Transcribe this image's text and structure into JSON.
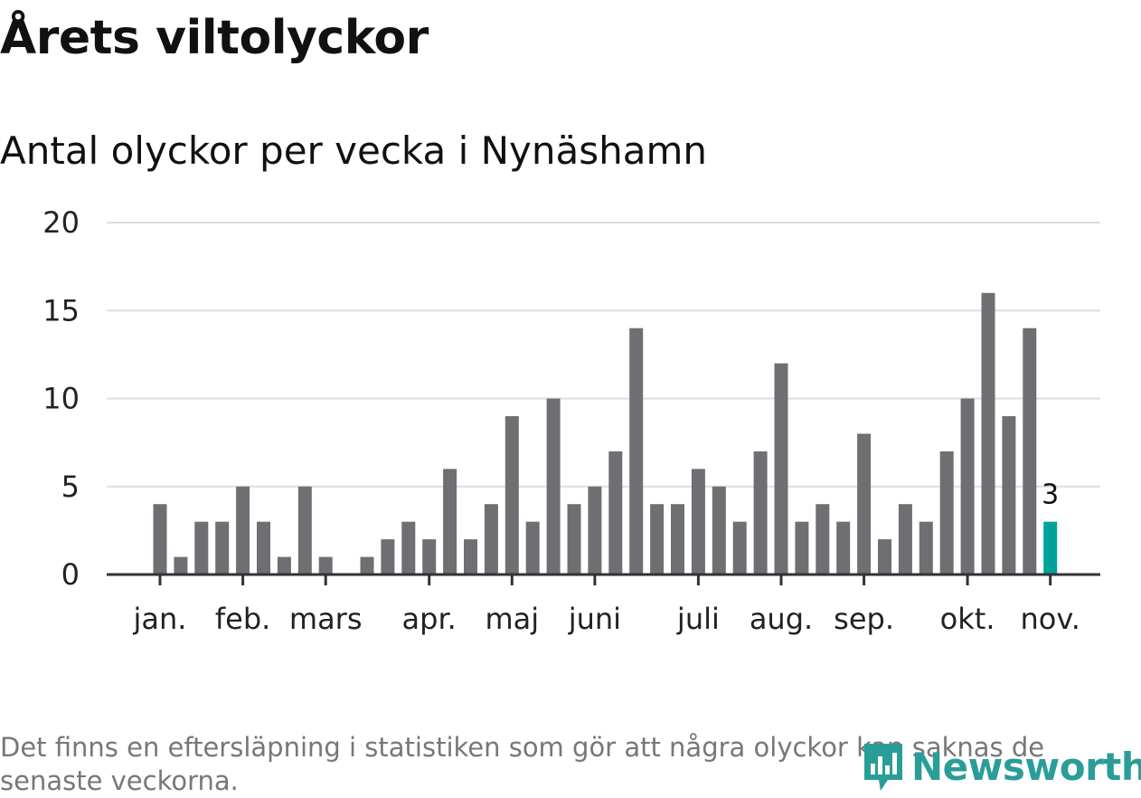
{
  "title": "Årets viltolyckor",
  "subtitle": "Antal olyckor per vecka i Nynäshamn",
  "footnote": "Det finns en eftersläpning i statistiken som gör att några olyckor kan saknas de senaste veckorna.",
  "brand": {
    "name": "Newsworthy",
    "color": "#2a9d98",
    "icon": "newsworthy-logo-icon"
  },
  "colors": {
    "bar": "#6f6e73",
    "highlight": "#00a39a",
    "grid": "#dddddd",
    "axis": "#333333"
  },
  "chart_data": {
    "type": "bar",
    "title": "Antal olyckor per vecka i Nynäshamn",
    "xlabel": "",
    "ylabel": "",
    "ylim": [
      0,
      20
    ],
    "yticks": [
      "0",
      "5",
      "10",
      "15",
      "20"
    ],
    "grid": true,
    "x_unit": "week",
    "values": [
      4,
      1,
      3,
      3,
      5,
      3,
      1,
      5,
      1,
      0,
      1,
      2,
      3,
      2,
      6,
      2,
      4,
      9,
      3,
      10,
      4,
      5,
      7,
      14,
      4,
      4,
      6,
      5,
      3,
      7,
      12,
      3,
      4,
      3,
      8,
      2,
      4,
      3,
      7,
      10,
      16,
      9,
      14,
      3
    ],
    "month_labels": [
      {
        "label": "jan.",
        "week": 0
      },
      {
        "label": "feb.",
        "week": 4
      },
      {
        "label": "mars",
        "week": 8
      },
      {
        "label": "apr.",
        "week": 13
      },
      {
        "label": "maj",
        "week": 17
      },
      {
        "label": "juni",
        "week": 21
      },
      {
        "label": "juli",
        "week": 26
      },
      {
        "label": "aug.",
        "week": 30
      },
      {
        "label": "sep.",
        "week": 34
      },
      {
        "label": "okt.",
        "week": 39
      },
      {
        "label": "nov.",
        "week": 43
      }
    ],
    "highlight_index": 43,
    "highlight_label": "3"
  }
}
